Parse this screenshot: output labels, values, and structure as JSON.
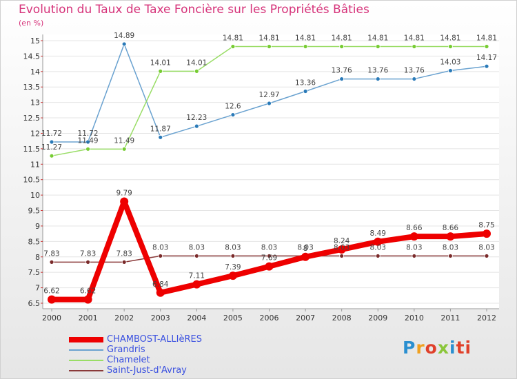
{
  "chart_data": {
    "type": "line",
    "title": "Evolution du Taux de Taxe Foncière sur les Propriétés Bâties",
    "ylabel": "(en %)",
    "xlabel": "",
    "categories": [
      "2000",
      "2001",
      "2002",
      "2003",
      "2004",
      "2005",
      "2006",
      "2007",
      "2008",
      "2009",
      "2010",
      "2011",
      "2012"
    ],
    "ylim": [
      6.5,
      15
    ],
    "yticks": [
      "6.5",
      "7",
      "7.5",
      "8",
      "8.5",
      "9",
      "9.5",
      "10",
      "10.5",
      "11",
      "11.5",
      "12",
      "12.5",
      "13",
      "13.5",
      "14",
      "14.5",
      "15"
    ],
    "series": [
      {
        "name": "CHAMBOST-ALLIèRES",
        "color": "#ee0000",
        "values": [
          6.62,
          6.62,
          9.79,
          6.84,
          7.11,
          7.39,
          7.69,
          8,
          8.24,
          8.49,
          8.66,
          8.66,
          8.75
        ],
        "labels": [
          "6.62",
          "6.62",
          "9.79",
          "6.84",
          "7.11",
          "7.39",
          "7.69",
          "8",
          "8.24",
          "8.49",
          "8.66",
          "8.66",
          "8.75"
        ]
      },
      {
        "name": "Grandris",
        "color": "#6aa2d0",
        "marker": "#2a7ab8",
        "values": [
          11.72,
          11.72,
          14.89,
          11.87,
          12.23,
          12.6,
          12.97,
          13.36,
          13.76,
          13.76,
          13.76,
          14.03,
          14.17
        ],
        "labels": [
          "11.72",
          "11.72",
          "14.89",
          "11.87",
          "12.23",
          "12.6",
          "12.97",
          "13.36",
          "13.76",
          "13.76",
          "13.76",
          "14.03",
          "14.17"
        ]
      },
      {
        "name": "Chamelet",
        "color": "#99dd66",
        "marker": "#77cc33",
        "values": [
          11.27,
          11.49,
          11.49,
          14.01,
          14.01,
          14.81,
          14.81,
          14.81,
          14.81,
          14.81,
          14.81,
          14.81,
          14.81
        ],
        "labels": [
          "11.27",
          "11.49",
          "11.49",
          "14.01",
          "14.01",
          "14.81",
          "14.81",
          "14.81",
          "14.81",
          "14.81",
          "14.81",
          "14.81",
          "14.81"
        ]
      },
      {
        "name": "Saint-Just-d'Avray",
        "color": "#8a3a3a",
        "marker": "#7a2a2a",
        "values": [
          7.83,
          7.83,
          7.83,
          8.03,
          8.03,
          8.03,
          8.03,
          8.03,
          8.03,
          8.03,
          8.03,
          8.03,
          8.03
        ],
        "labels": [
          "7.83",
          "7.83",
          "7.83",
          "8.03",
          "8.03",
          "8.03",
          "8.03",
          "8.03",
          "8.03",
          "8.03",
          "8.03",
          "8.03",
          "8.03"
        ]
      }
    ]
  },
  "logo": [
    "P",
    "r",
    "o",
    "x",
    "i",
    "ti"
  ]
}
